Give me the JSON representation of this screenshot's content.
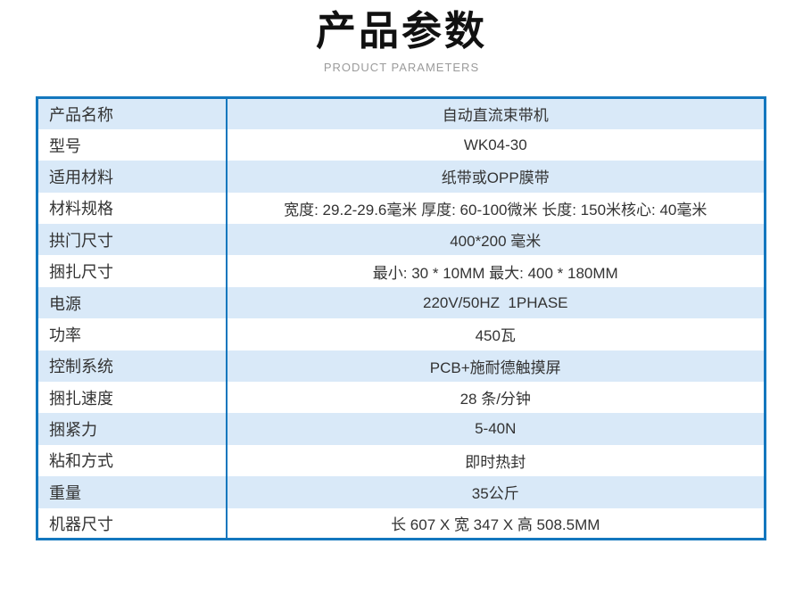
{
  "header": {
    "title": "产品参数",
    "subtitle": "PRODUCT PARAMETERS"
  },
  "colors": {
    "table_border_blue": "#1377be",
    "row_stripe_blue": "#d9e9f8",
    "body_text": "#333333",
    "subtitle_gray": "#9b9b9b"
  },
  "table": {
    "rows": [
      {
        "label": "产品名称",
        "value": "自动直流束带机"
      },
      {
        "label": "型号",
        "value": "WK04-30"
      },
      {
        "label": "适用材料",
        "value": "纸带或OPP膜带"
      },
      {
        "label": "材料规格",
        "value": "宽度: 29.2-29.6毫米 厚度: 60-100微米 长度: 150米核心: 40毫米"
      },
      {
        "label": "拱门尺寸",
        "value": "400*200 毫米"
      },
      {
        "label": "捆扎尺寸",
        "value": "最小: 30 * 10MM 最大: 400 * 180MM"
      },
      {
        "label": "电源",
        "value": "220V/50HZ  1PHASE"
      },
      {
        "label": "功率",
        "value": "450瓦"
      },
      {
        "label": "控制系统",
        "value": "PCB+施耐德触摸屏"
      },
      {
        "label": "捆扎速度",
        "value": "28 条/分钟"
      },
      {
        "label": "捆紧力",
        "value": "5-40N"
      },
      {
        "label": "粘和方式",
        "value": "即时热封"
      },
      {
        "label": "重量",
        "value": "35公斤"
      },
      {
        "label": "机器尺寸",
        "value": "长 607 X 宽 347 X 高 508.5MM"
      }
    ]
  }
}
